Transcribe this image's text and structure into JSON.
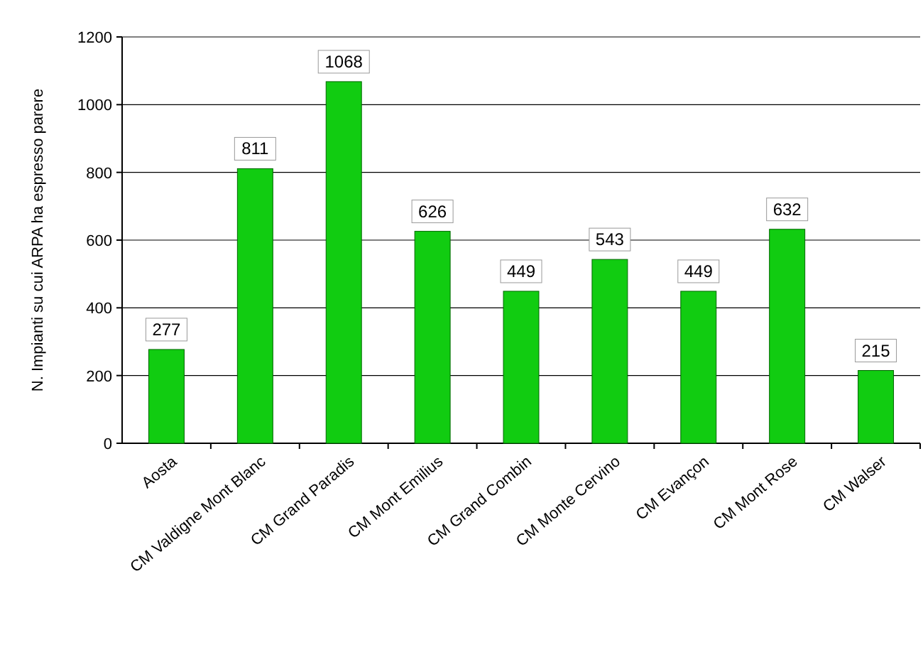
{
  "chart_data": {
    "type": "bar",
    "ylabel": "N. Impianti su cui ARPA ha espresso parere",
    "categories": [
      "Aosta",
      "CM Valdigne Mont Blanc",
      "CM Grand Paradis",
      "CM Mont Emilius",
      "CM Grand Combin",
      "CM Monte Cervino",
      "CM Evançon",
      "CM Mont Rose",
      "CM Walser"
    ],
    "values": [
      277,
      811,
      1068,
      626,
      449,
      543,
      449,
      632,
      215
    ],
    "color": "#11cc11",
    "ylim": [
      0,
      1200
    ],
    "yticks": [
      0,
      200,
      400,
      600,
      800,
      1000,
      1200
    ],
    "grid": "y",
    "data_labels": true
  }
}
